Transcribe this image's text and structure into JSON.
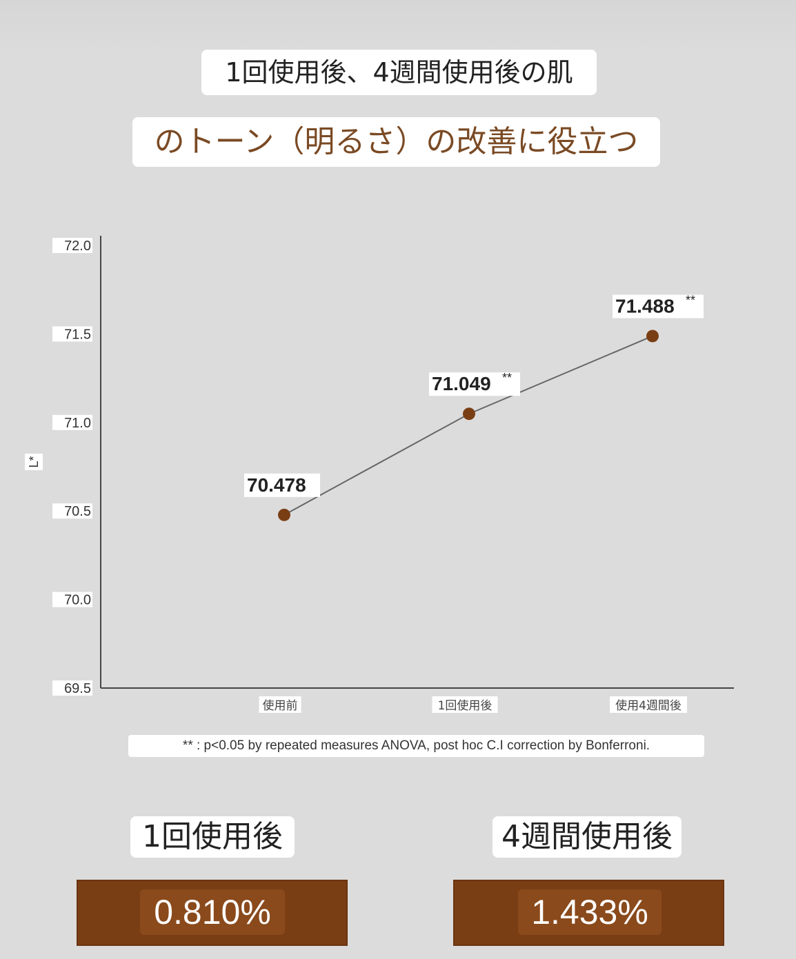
{
  "header": {
    "title_line1": "1回使用後、4週間使用後の肌",
    "title_line2": "のトーン（明るさ）の改善に役立つ"
  },
  "chart_data": {
    "type": "line",
    "title": "",
    "xlabel": "",
    "ylabel": "L*",
    "ylim": [
      69.5,
      72.0
    ],
    "yticks": [
      "72.0",
      "71.5",
      "71.0",
      "70.5",
      "70.0",
      "69.5"
    ],
    "categories": [
      "使用前",
      "1回使用後",
      "使用4週間後"
    ],
    "values": [
      70.478,
      71.049,
      71.488
    ],
    "data_labels": [
      "70.478",
      "71.049",
      "71.488"
    ],
    "significance": [
      "",
      "**",
      "**"
    ],
    "grid": false,
    "colors": {
      "point": "#7a3e14",
      "line": "#666666",
      "axis": "#444444"
    }
  },
  "footnote": "** : p<0.05 by repeated measures ANOVA, post hoc C.I correction by Bonferroni.",
  "results": [
    {
      "label": "1回使用後",
      "value": "0.810%"
    },
    {
      "label": "4週間使用後",
      "value": "1.433%"
    }
  ],
  "colors": {
    "accent": "#7a3e14",
    "title2": "#7a4a24"
  }
}
